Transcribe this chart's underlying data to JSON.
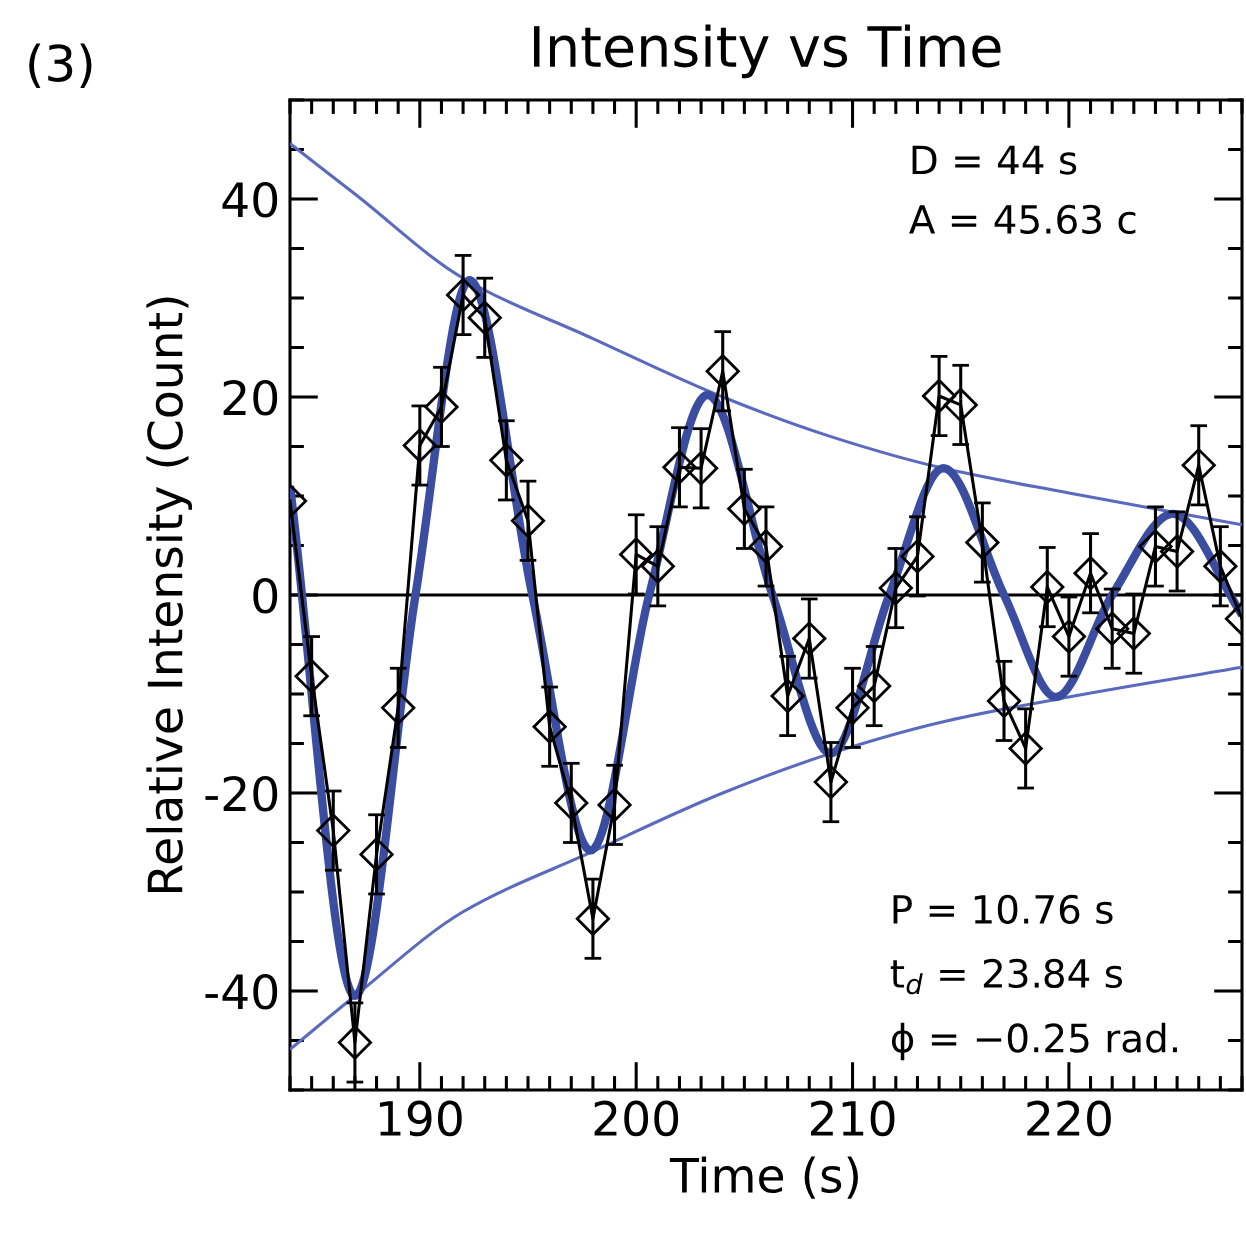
{
  "chart_data": {
    "type": "line",
    "title": "Intensity vs Time",
    "xlabel": "Time (s)",
    "ylabel": "Relative Intensity (Count)",
    "xlim": [
      184,
      228
    ],
    "ylim": [
      -50,
      50
    ],
    "xticks": [
      190,
      200,
      210,
      220
    ],
    "yticks": [
      -40,
      -20,
      0,
      20,
      40
    ],
    "grid": false,
    "legend": false,
    "ref_lines": [
      {
        "axis": "y",
        "value": 0,
        "color": "#000000"
      }
    ],
    "annotations": [
      "(3)",
      "D = 44 s",
      "A = 45.63 c",
      "P = 10.76 s",
      "t$_{d}$ = 23.84 s",
      "ϕ = −0.25 rad."
    ],
    "series": [
      {
        "color": "#000000",
        "marker": "diamond",
        "line_style": "solid",
        "x": [
          184,
          185,
          186,
          187,
          188,
          189,
          190,
          191,
          192,
          193,
          194,
          195,
          196,
          197,
          198,
          199,
          200,
          201,
          202,
          203,
          204,
          205,
          206,
          207,
          208,
          209,
          210,
          211,
          212,
          213,
          214,
          215,
          216,
          217,
          218,
          219,
          220,
          221,
          222,
          223,
          224,
          225,
          226,
          227,
          228
        ],
        "values": [
          9.5,
          -8.2,
          -23.8,
          -45.2,
          -26.2,
          -11.4,
          15.1,
          19.0,
          30.3,
          28.0,
          13.6,
          7.5,
          -13.3,
          -21.0,
          -32.7,
          -21.2,
          4.1,
          2.9,
          12.9,
          12.8,
          22.6,
          8.7,
          4.9,
          -10.2,
          -4.4,
          -18.9,
          -11.4,
          -9.2,
          0.7,
          3.9,
          20.1,
          19.2,
          5.3,
          -10.7,
          -15.5,
          0.8,
          -4.2,
          2.2,
          -3.4,
          -3.9,
          4.9,
          4.4,
          13.1,
          2.9,
          -2.4
        ],
        "errors": [
          null,
          4,
          4,
          4,
          4,
          4,
          4,
          4,
          4,
          4,
          4,
          4,
          4,
          4,
          4,
          4,
          4,
          4,
          4,
          4,
          4,
          4,
          4,
          4,
          4,
          4,
          4,
          4,
          4,
          4,
          4,
          4,
          4,
          4,
          4,
          4,
          4,
          4,
          4,
          4,
          4,
          4,
          4,
          4,
          null
        ]
      },
      {
        "color": "#3b4da0",
        "marker": "none",
        "line_style": "solid",
        "x": [
          184,
          187,
          189.8,
          192.3,
          195.2,
          197.9,
          200.6,
          203.3,
          206.3,
          209,
          211.7,
          214.2,
          217,
          219.4,
          222,
          224.8,
          228
        ],
        "values": [
          11,
          -40.5,
          0,
          31.8,
          0,
          -25.8,
          0,
          20.2,
          0,
          -16,
          0,
          12.8,
          0,
          -10.3,
          0,
          8.2,
          -2
        ]
      },
      {
        "color": "#5a6bbf",
        "marker": "none",
        "line_style": "solid",
        "x": [
          184,
          187,
          192,
          198,
          204,
          209,
          214,
          220,
          228
        ],
        "values": [
          45.6,
          40.5,
          32,
          25.9,
          20,
          16,
          12.9,
          10.3,
          7.1
        ]
      },
      {
        "color": "#5a6bbf",
        "marker": "none",
        "line_style": "solid",
        "x": [
          184,
          187,
          192,
          198,
          204,
          209,
          214,
          220,
          228
        ],
        "values": [
          -45.9,
          -40.5,
          -32,
          -25.9,
          -20,
          -16,
          -12.9,
          -10.3,
          -7.3
        ]
      }
    ]
  }
}
